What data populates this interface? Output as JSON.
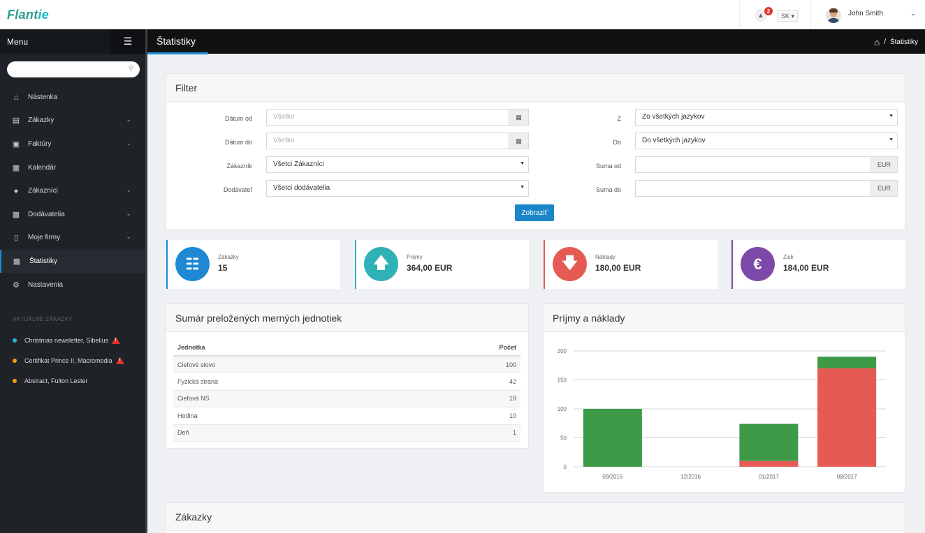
{
  "brand": {
    "name_main": "Flant",
    "name_accent": "ie"
  },
  "topbar": {
    "notifications_count": "2",
    "language": "SK ▾",
    "user_name": "John Smith"
  },
  "sidebar": {
    "menu_label": "Menu",
    "search_placeholder": "",
    "items": [
      {
        "label": "Nástenka",
        "icon": "home-icon"
      },
      {
        "label": "Zákazky",
        "icon": "orders-icon"
      },
      {
        "label": "Faktúry",
        "icon": "invoice-icon"
      },
      {
        "label": "Kalendár",
        "icon": "calendar-icon"
      },
      {
        "label": "Zákazníci",
        "icon": "user-icon"
      },
      {
        "label": "Dodávatelia",
        "icon": "briefcase-icon"
      },
      {
        "label": "Moje firmy",
        "icon": "building-icon"
      },
      {
        "label": "Štatistiky",
        "icon": "bar-chart-icon"
      },
      {
        "label": "Nastavenia",
        "icon": "gear-icon"
      }
    ],
    "section_title": "AKTUÁLNE ZÁKAZKY",
    "current_orders": [
      {
        "label": "Christmas newsletter, Sibelius",
        "color": "#2bb3e6",
        "warning": true
      },
      {
        "label": "Certifikat Prince II, Macromedia",
        "color": "#f39c12",
        "warning": true
      },
      {
        "label": "Abstract, Fulton Lester",
        "color": "#f39c12",
        "warning": false
      }
    ]
  },
  "page": {
    "title": "Štatistiky",
    "breadcrumb_current": "Štatistiky",
    "breadcrumb_sep": "/"
  },
  "filter": {
    "title": "Filter",
    "date_from_label": "Dátum od",
    "date_from_placeholder": "Všetko",
    "date_to_label": "Dátum do",
    "date_to_placeholder": "Všetko",
    "customer_label": "Zákazník",
    "customer_value": "Všetci Zákazníci",
    "supplier_label": "Dodávateľ",
    "supplier_value": "Všetci dodávatelia",
    "from_lang_label": "Z",
    "from_lang_value": "Zo všetkých jazykov",
    "to_lang_label": "Do",
    "to_lang_value": "Do všetkých jazykov",
    "sum_from_label": "Suma od",
    "sum_to_label": "Suma do",
    "currency": "EUR",
    "submit_label": "Zobraziť"
  },
  "stats": [
    {
      "label": "Zákazky",
      "value": "15",
      "color": "#1e88d2",
      "icon": "cart-icon"
    },
    {
      "label": "Príjmy",
      "value": "364,00 EUR",
      "color": "#2fb1b6",
      "icon": "arrow-up-icon"
    },
    {
      "label": "Náklady",
      "value": "180,00 EUR",
      "color": "#e55b53",
      "icon": "arrow-down-icon"
    },
    {
      "label": "Zisk",
      "value": "184,00 EUR",
      "color": "#7b4aa8",
      "icon": "euro-icon"
    }
  ],
  "units_table": {
    "title": "Sumár preložených merných jednotiek",
    "columns": [
      "Jednotka",
      "Počet"
    ],
    "rows": [
      [
        "Cieľové slovo",
        "100"
      ],
      [
        "Fyzická strana",
        "42"
      ],
      [
        "Cieľová NS",
        "19"
      ],
      [
        "Hodina",
        "10"
      ],
      [
        "Deň",
        "1"
      ]
    ]
  },
  "chart_panel": {
    "title": "Príjmy a náklady"
  },
  "chart_data": {
    "type": "bar",
    "stacked": true,
    "categories": [
      "09/2016",
      "12/2016",
      "01/2017",
      "08/2017"
    ],
    "series": [
      {
        "values": [
          0,
          0,
          10,
          170
        ],
        "color": "#e55b53"
      },
      {
        "values": [
          100,
          0,
          64,
          20
        ],
        "color": "#3e9a46"
      }
    ],
    "ylim": [
      0,
      200
    ],
    "yticks": [
      0,
      50,
      100,
      150,
      200
    ],
    "grid": true,
    "legend": "none"
  },
  "orders_panel": {
    "title": "Zákazky"
  }
}
